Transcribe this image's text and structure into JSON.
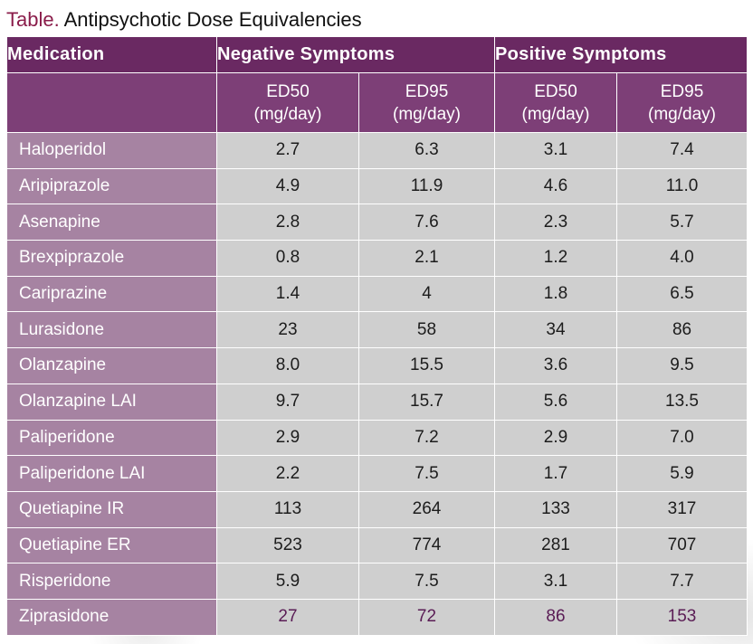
{
  "caption": {
    "label": "Table.",
    "title": "Antipsychotic Dose Equivalencies"
  },
  "headers": {
    "medication": "Medication",
    "negative": "Negative Symptoms",
    "positive": "Positive Symptoms",
    "sub": [
      {
        "l1": "ED50",
        "l2": "(mg/day)"
      },
      {
        "l1": "ED95",
        "l2": "(mg/day)"
      },
      {
        "l1": "ED50",
        "l2": "(mg/day)"
      },
      {
        "l1": "ED95",
        "l2": "(mg/day)"
      }
    ]
  },
  "rows": [
    {
      "name": "Haloperidol",
      "values": [
        "2.7",
        "6.3",
        "3.1",
        "7.4"
      ]
    },
    {
      "name": "Aripiprazole",
      "values": [
        "4.9",
        "11.9",
        "4.6",
        "11.0"
      ]
    },
    {
      "name": "Asenapine",
      "values": [
        "2.8",
        "7.6",
        "2.3",
        "5.7"
      ]
    },
    {
      "name": "Brexpiprazole",
      "values": [
        "0.8",
        "2.1",
        "1.2",
        "4.0"
      ]
    },
    {
      "name": "Cariprazine",
      "values": [
        "1.4",
        "4",
        "1.8",
        "6.5"
      ]
    },
    {
      "name": "Lurasidone",
      "values": [
        "23",
        "58",
        "34",
        "86"
      ]
    },
    {
      "name": "Olanzapine",
      "values": [
        "8.0",
        "15.5",
        "3.6",
        "9.5"
      ]
    },
    {
      "name": "Olanzapine LAI",
      "values": [
        "9.7",
        "15.7",
        "5.6",
        "13.5"
      ]
    },
    {
      "name": "Paliperidone",
      "values": [
        "2.9",
        "7.2",
        "2.9",
        "7.0"
      ]
    },
    {
      "name": "Paliperidone LAI",
      "values": [
        "2.2",
        "7.5",
        "1.7",
        "5.9"
      ]
    },
    {
      "name": "Quetiapine IR",
      "values": [
        "113",
        "264",
        "133",
        "317"
      ]
    },
    {
      "name": "Quetiapine ER",
      "values": [
        "523",
        "774",
        "281",
        "707"
      ]
    },
    {
      "name": "Risperidone",
      "values": [
        "5.9",
        "7.5",
        "3.1",
        "7.7"
      ]
    },
    {
      "name": "Ziprasidone",
      "values": [
        "27",
        "72",
        "86",
        "153"
      ]
    }
  ]
}
